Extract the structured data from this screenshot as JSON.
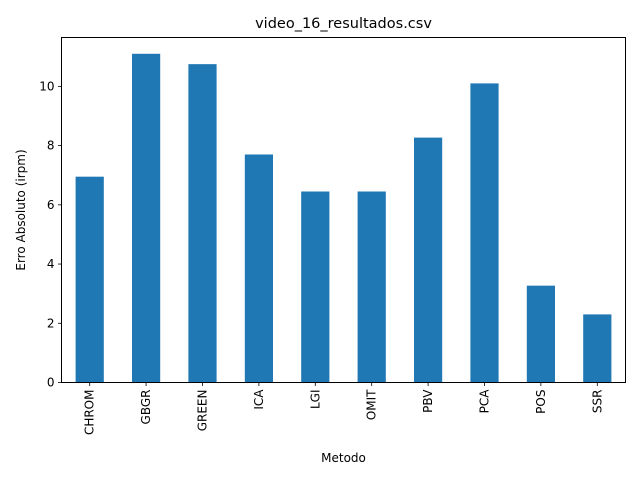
{
  "chart_data": {
    "type": "bar",
    "title": "video_16_resultados.csv",
    "xlabel": "Metodo",
    "ylabel": "Erro Absoluto (irpm)",
    "categories": [
      "CHROM",
      "GBGR",
      "GREEN",
      "ICA",
      "LGI",
      "OMIT",
      "PBV",
      "PCA",
      "POS",
      "SSR"
    ],
    "values": [
      6.95,
      11.1,
      10.75,
      7.7,
      6.45,
      6.45,
      8.27,
      10.1,
      3.27,
      2.3
    ],
    "yticks": [
      0,
      2,
      4,
      6,
      8,
      10
    ],
    "ylim": [
      0,
      11.65
    ],
    "grid": false,
    "bar_color": "#1f77b4"
  }
}
